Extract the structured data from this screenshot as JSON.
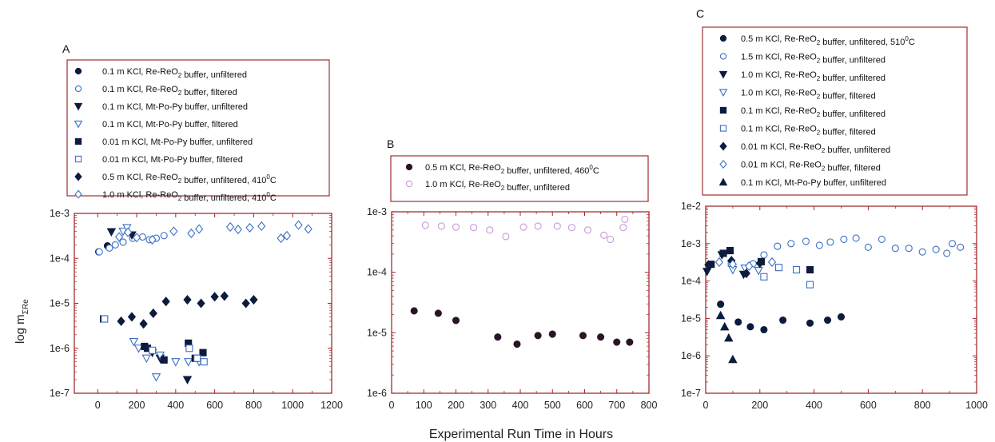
{
  "figure": {
    "xlabel": "Experimental Run Time in Hours",
    "ylabel_main": "log m",
    "ylabel_sub": "ΣRe"
  },
  "colors": {
    "dark": "#0d1b3e",
    "dark_b": "#2a1528",
    "blue": "#3a6fc4",
    "light_purple": "#c69ad6",
    "frame": "#a03030",
    "tick_red": "#b02020"
  },
  "chart_data": [
    {
      "panel": "A",
      "type": "scatter",
      "xscale": "linear",
      "yscale": "log",
      "xlim": [
        -120,
        1200
      ],
      "ylim": [
        1e-07,
        0.001
      ],
      "xticks": [
        "0",
        "200",
        "400",
        "600",
        "800",
        "1000",
        "1200"
      ],
      "xtick_values": [
        0,
        200,
        400,
        600,
        800,
        1000,
        1200
      ],
      "yticks": [
        "1e-7",
        "1e-6",
        "1e-5",
        "1e-4",
        "1e-3"
      ],
      "ytick_values": [
        1e-07,
        1e-06,
        1e-05,
        0.0001,
        0.001
      ],
      "legend_position": "top",
      "series": [
        {
          "name": "0.1 m KCl, Re-ReO₂ buffer, unfiltered",
          "marker": "circle",
          "fill": "solid",
          "color": "dark",
          "points": [
            [
              5,
              0.00014
            ],
            [
              50,
              0.00019
            ]
          ]
        },
        {
          "name": "0.1 m KCl, Re-ReO₂ buffer, filtered",
          "marker": "circle",
          "fill": "open",
          "color": "blue",
          "points": [
            [
              8,
              0.00014
            ],
            [
              60,
              0.00017
            ],
            [
              90,
              0.0002
            ],
            [
              130,
              0.00023
            ],
            [
              180,
              0.00028
            ],
            [
              230,
              0.0003
            ],
            [
              265,
              0.00026
            ],
            [
              300,
              0.00028
            ],
            [
              340,
              0.00032
            ]
          ]
        },
        {
          "name": "0.1 m KCl, Mt-Po-Py buffer, unfiltered",
          "marker": "triangle-down",
          "fill": "solid",
          "color": "dark",
          "points": [
            [
              70,
              0.00039
            ],
            [
              175,
              0.00033
            ],
            [
              280,
              8e-07
            ],
            [
              320,
              6e-07
            ],
            [
              460,
              2e-07
            ]
          ]
        },
        {
          "name": "0.1 m KCl, Mt-Po-Py buffer, filtered",
          "marker": "triangle-down",
          "fill": "open",
          "color": "blue",
          "points": [
            [
              130,
              0.0004
            ],
            [
              150,
              0.00048
            ],
            [
              185,
              1.4e-06
            ],
            [
              210,
              1e-06
            ],
            [
              250,
              6e-07
            ],
            [
              300,
              2.3e-07
            ],
            [
              320,
              7e-07
            ],
            [
              400,
              5e-07
            ],
            [
              465,
              5e-07
            ],
            [
              520,
              5e-07
            ]
          ]
        },
        {
          "name": "0.01 m KCl, Mt-Po-Py buffer, unfiltered",
          "marker": "square",
          "fill": "solid",
          "color": "dark",
          "points": [
            [
              30,
              4.5e-06
            ],
            [
              240,
              1.1e-06
            ],
            [
              255,
              1e-06
            ],
            [
              340,
              5.5e-07
            ],
            [
              465,
              1.3e-06
            ],
            [
              500,
              6e-07
            ],
            [
              540,
              8e-07
            ]
          ]
        },
        {
          "name": "0.01 m KCl, Mt-Po-Py buffer, filtered",
          "marker": "square",
          "fill": "open",
          "color": "blue",
          "points": [
            [
              35,
              4.5e-06
            ],
            [
              280,
              9e-07
            ],
            [
              470,
              1e-06
            ],
            [
              510,
              6e-07
            ],
            [
              545,
              5e-07
            ]
          ]
        },
        {
          "name": "0.5 m KCl, Re-ReO₂ buffer, unfiltered, 410°C",
          "marker": "diamond",
          "fill": "solid",
          "color": "dark",
          "points": [
            [
              120,
              4e-06
            ],
            [
              175,
              5e-06
            ],
            [
              235,
              3.5e-06
            ],
            [
              285,
              6e-06
            ],
            [
              350,
              1.1e-05
            ],
            [
              460,
              1.2e-05
            ],
            [
              530,
              1e-05
            ],
            [
              600,
              1.4e-05
            ],
            [
              650,
              1.45e-05
            ],
            [
              760,
              1e-05
            ],
            [
              800,
              1.2e-05
            ]
          ]
        },
        {
          "name": "1.0 m KCl, Re-ReO₂ buffer, unfiltered, 410°C",
          "marker": "diamond",
          "fill": "open",
          "color": "blue",
          "points": [
            [
              110,
              0.0003
            ],
            [
              155,
              0.00038
            ],
            [
              200,
              0.00029
            ],
            [
              280,
              0.00026
            ],
            [
              390,
              0.0004
            ],
            [
              480,
              0.00036
            ],
            [
              520,
              0.00045
            ],
            [
              680,
              0.0005
            ],
            [
              720,
              0.00044
            ],
            [
              780,
              0.00048
            ],
            [
              840,
              0.00052
            ],
            [
              940,
              0.00028
            ],
            [
              970,
              0.00032
            ],
            [
              1030,
              0.00055
            ],
            [
              1080,
              0.00045
            ]
          ]
        }
      ]
    },
    {
      "panel": "B",
      "type": "scatter",
      "xscale": "linear",
      "yscale": "log",
      "xlim": [
        0,
        800
      ],
      "ylim": [
        1e-06,
        0.001
      ],
      "xticks": [
        "0",
        "100",
        "200",
        "300",
        "400",
        "500",
        "600",
        "700",
        "800"
      ],
      "xtick_values": [
        0,
        100,
        200,
        300,
        400,
        500,
        600,
        700,
        800
      ],
      "yticks": [
        "1e-6",
        "1e-5",
        "1e-4",
        "1e-3"
      ],
      "ytick_values": [
        1e-06,
        1e-05,
        0.0001,
        0.001
      ],
      "legend_position": "top",
      "series": [
        {
          "name": "0.5 m KCl, Re-ReO₂ buffer, unfiltered, 460°C",
          "marker": "circle",
          "fill": "solid",
          "color": "dark_b",
          "points": [
            [
              70,
              2.3e-05
            ],
            [
              145,
              2.1e-05
            ],
            [
              200,
              1.6e-05
            ],
            [
              330,
              8.5e-06
            ],
            [
              390,
              6.5e-06
            ],
            [
              455,
              9e-06
            ],
            [
              500,
              9.5e-06
            ],
            [
              595,
              9e-06
            ],
            [
              650,
              8.5e-06
            ],
            [
              700,
              7e-06
            ],
            [
              740,
              7e-06
            ]
          ]
        },
        {
          "name": "1.0 m KCl, Re-ReO₂ buffer, unfiltered",
          "marker": "circle",
          "fill": "open",
          "color": "light_purple",
          "points": [
            [
              105,
              0.0006
            ],
            [
              155,
              0.00058
            ],
            [
              200,
              0.00056
            ],
            [
              255,
              0.00055
            ],
            [
              305,
              0.0005
            ],
            [
              355,
              0.00039
            ],
            [
              410,
              0.00056
            ],
            [
              455,
              0.00058
            ],
            [
              515,
              0.00058
            ],
            [
              560,
              0.00055
            ],
            [
              610,
              0.0005
            ],
            [
              660,
              0.00041
            ],
            [
              680,
              0.00035
            ],
            [
              720,
              0.00055
            ],
            [
              725,
              0.00075
            ]
          ]
        }
      ]
    },
    {
      "panel": "C",
      "type": "scatter",
      "xscale": "linear",
      "yscale": "log",
      "xlim": [
        0,
        1000
      ],
      "ylim": [
        1e-07,
        0.01
      ],
      "xticks": [
        "0",
        "200",
        "400",
        "600",
        "800",
        "1000"
      ],
      "xtick_values": [
        0,
        200,
        400,
        600,
        800,
        1000
      ],
      "yticks": [
        "1e-7",
        "1e-6",
        "1e-5",
        "1e-4",
        "1e-3",
        "1e-2"
      ],
      "ytick_values": [
        1e-07,
        1e-06,
        1e-05,
        0.0001,
        0.001,
        0.01
      ],
      "legend_position": "top",
      "series": [
        {
          "name": "0.5 m KCl, Re-ReO₂ buffer, unfiltered, 510°C",
          "marker": "circle",
          "fill": "solid",
          "color": "dark",
          "points": [
            [
              55,
              2.4e-05
            ],
            [
              120,
              8e-06
            ],
            [
              165,
              6e-06
            ],
            [
              215,
              5e-06
            ],
            [
              285,
              9e-06
            ],
            [
              385,
              7.5e-06
            ],
            [
              450,
              9e-06
            ],
            [
              500,
              1.1e-05
            ]
          ]
        },
        {
          "name": "1.5 m KCl, Re-ReO₂ buffer, unfiltered",
          "marker": "circle",
          "fill": "open",
          "color": "blue",
          "points": [
            [
              175,
              0.00029
            ],
            [
              215,
              0.0005
            ],
            [
              265,
              0.00085
            ],
            [
              315,
              0.001
            ],
            [
              370,
              0.00115
            ],
            [
              420,
              0.0009
            ],
            [
              460,
              0.0011
            ],
            [
              510,
              0.0013
            ],
            [
              555,
              0.0014
            ],
            [
              600,
              0.0008
            ],
            [
              650,
              0.0013
            ],
            [
              700,
              0.00075
            ],
            [
              750,
              0.00075
            ],
            [
              800,
              0.0006
            ],
            [
              850,
              0.0007
            ],
            [
              890,
              0.00055
            ],
            [
              910,
              0.001
            ],
            [
              940,
              0.0008
            ]
          ]
        },
        {
          "name": "1.0 m KCl, Re-ReO₂ buffer, unfiltered",
          "marker": "triangle-down",
          "fill": "solid",
          "color": "dark",
          "points": [
            [
              5,
              0.00018
            ],
            [
              60,
              0.0005
            ],
            [
              140,
              0.00015
            ]
          ]
        },
        {
          "name": "1.0 m KCl, Re-ReO₂ buffer, filtered",
          "marker": "triangle-down",
          "fill": "open",
          "color": "blue",
          "points": [
            [
              100,
              0.0002
            ],
            [
              145,
              0.00022
            ],
            [
              195,
              0.00019
            ]
          ]
        },
        {
          "name": "0.1 m KCl, Re-ReO₂ buffer, unfiltered",
          "marker": "square",
          "fill": "solid",
          "color": "dark",
          "points": [
            [
              20,
              0.00028
            ],
            [
              65,
              0.00055
            ],
            [
              90,
              0.00065
            ],
            [
              205,
              0.00033
            ],
            [
              385,
              0.0002
            ]
          ]
        },
        {
          "name": "0.1 m KCl, Re-ReO₂ buffer, filtered",
          "marker": "square",
          "fill": "open",
          "color": "blue",
          "points": [
            [
              95,
              0.0003
            ],
            [
              215,
              0.00013
            ],
            [
              270,
              0.00023
            ],
            [
              335,
              0.0002
            ],
            [
              385,
              8e-05
            ]
          ]
        },
        {
          "name": "0.01 m KCl, Re-ReO₂ buffer, unfiltered",
          "marker": "diamond",
          "fill": "solid",
          "color": "dark",
          "points": [
            [
              10,
              0.00027
            ],
            [
              95,
              0.00035
            ],
            [
              150,
              0.00016
            ],
            [
              200,
              0.0003
            ]
          ]
        },
        {
          "name": "0.01 m KCl, Re-ReO₂ buffer, filtered",
          "marker": "diamond",
          "fill": "open",
          "color": "blue",
          "points": [
            [
              50,
              0.00032
            ],
            [
              100,
              0.00028
            ],
            [
              160,
              0.00025
            ],
            [
              245,
              0.00032
            ]
          ]
        },
        {
          "name": "0.1 m KCl, Mt-Po-Py buffer, unfiltered",
          "marker": "triangle-up",
          "fill": "solid",
          "color": "dark",
          "points": [
            [
              55,
              1.2e-05
            ],
            [
              70,
              6e-06
            ],
            [
              85,
              3e-06
            ],
            [
              100,
              8e-07
            ]
          ]
        }
      ]
    }
  ]
}
